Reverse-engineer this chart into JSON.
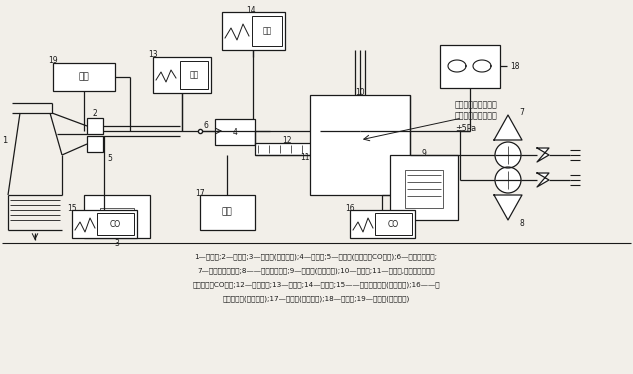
{
  "bg_color": "#f2efe9",
  "line_color": "#1a1a1a",
  "annotation_text": "過濾裝置進口相對試\n驗室環境的最大壓差\n±5Pa",
  "legend_lines": [
    "1—呼吸機;2—單向閥;3—增濕器(呼出空氣);4—聯接器;5—采樣口(吸入空氣CO含量);6—壓力探針小孔;",
    "7—試驗空氣流量計;8——氧化碳流量計;9—增濕器(試驗空氣);10—試驗箱;11—采樣口,在過濾裝置進口",
    "試驗空氣的CO含量;12—試驗樣品;13—壓力計;14—溫度計;15——氧化碳分析儀(吸入空氣);16——氧",
    "化碳分析儀(試驗空氣);17—濕度計(試驗空氣);18—排氣口;19—濕度計(吸入空氣)"
  ]
}
